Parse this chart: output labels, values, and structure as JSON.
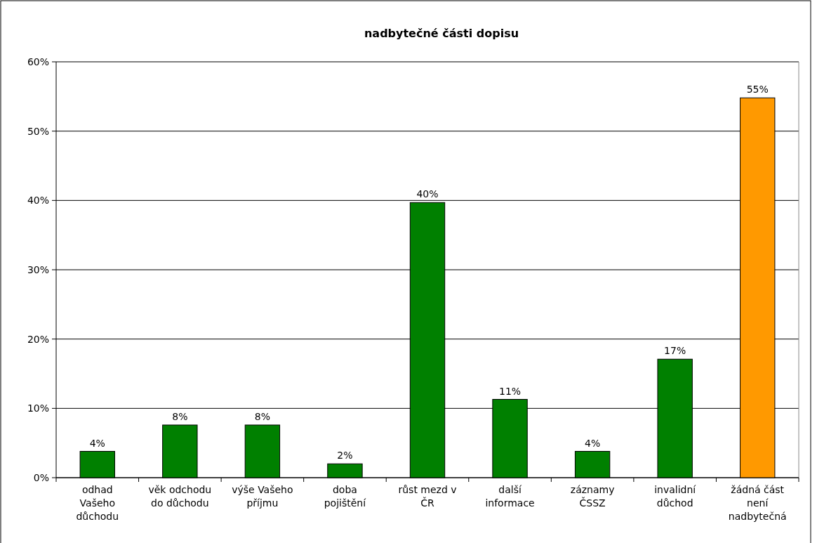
{
  "chart_data": {
    "type": "bar",
    "title": "nadbytečné části dopisu",
    "categories": [
      "odhad Vašeho důchodu",
      "věk odchodu do důchodu",
      "výše Vašeho příjmu",
      "doba pojištění",
      "růst mezd v ČR",
      "další informace",
      "záznamy ČSSZ",
      "invalidní důchod",
      "žádná část není nadbytečná"
    ],
    "values": [
      3.8,
      7.6,
      7.6,
      2.0,
      39.7,
      11.3,
      3.8,
      17.1,
      54.8
    ],
    "value_labels": [
      "4%",
      "8%",
      "8%",
      "2%",
      "40%",
      "11%",
      "4%",
      "17%",
      "55%"
    ],
    "colors": [
      "#008000",
      "#008000",
      "#008000",
      "#008000",
      "#008000",
      "#008000",
      "#008000",
      "#008000",
      "#ff9900"
    ],
    "ylim": [
      0,
      60
    ],
    "yticks": [
      {
        "value": 0,
        "label": "0%"
      },
      {
        "value": 10,
        "label": "10%"
      },
      {
        "value": 20,
        "label": "20%"
      },
      {
        "value": 30,
        "label": "30%"
      },
      {
        "value": 40,
        "label": "40%"
      },
      {
        "value": 50,
        "label": "50%"
      },
      {
        "value": 60,
        "label": "60%"
      }
    ],
    "grid": "y"
  }
}
